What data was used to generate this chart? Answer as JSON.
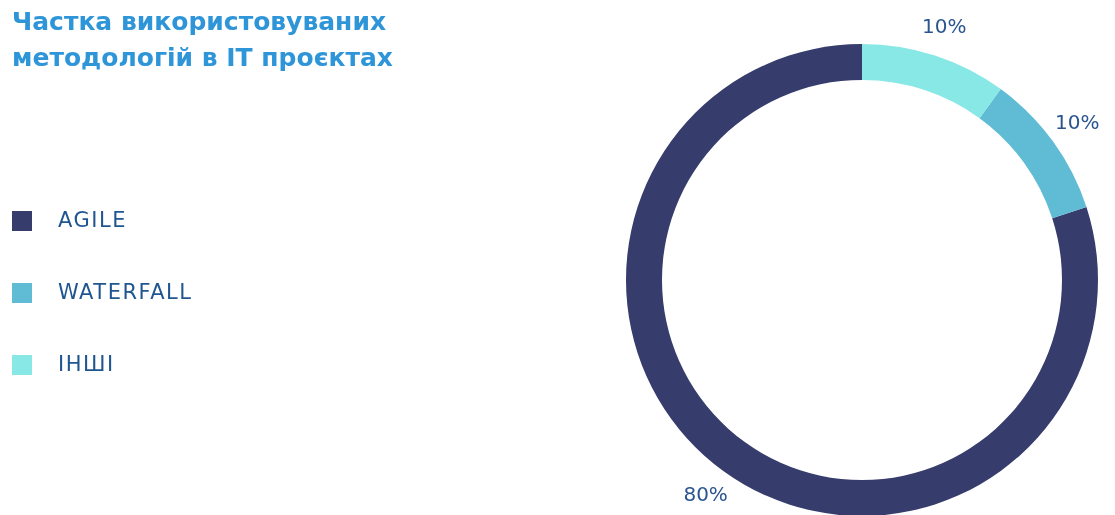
{
  "chart_data": {
    "type": "donut",
    "title": "Частка використовуваних методологій в IT проєктах",
    "categories": [
      "AGILE",
      "WATERFALL",
      "ІНШІ"
    ],
    "values": [
      80,
      10,
      10
    ],
    "colors": [
      "#363c6c",
      "#5fbcd4",
      "#88e8e6"
    ],
    "legend": "left",
    "value_labels": [
      "80%",
      "10%",
      "10%"
    ]
  }
}
